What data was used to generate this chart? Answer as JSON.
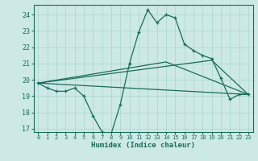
{
  "xlabel": "Humidex (Indice chaleur)",
  "bg_color": "#cce9e5",
  "grid_color": "#aad4ce",
  "line_color": "#1a6b5a",
  "xlim": [
    -0.5,
    23.5
  ],
  "ylim": [
    16.8,
    24.6
  ],
  "yticks": [
    17,
    18,
    19,
    20,
    21,
    22,
    23,
    24
  ],
  "xticks": [
    0,
    1,
    2,
    3,
    4,
    5,
    6,
    7,
    8,
    9,
    10,
    11,
    12,
    13,
    14,
    15,
    16,
    17,
    18,
    19,
    20,
    21,
    22,
    23
  ],
  "line1_x": [
    0,
    1,
    2,
    3,
    4,
    5,
    6,
    7,
    8,
    9,
    10,
    11,
    12,
    13,
    14,
    15,
    16,
    17,
    18,
    19,
    20,
    21,
    22,
    23
  ],
  "line1_y": [
    19.8,
    19.5,
    19.3,
    19.3,
    19.5,
    19.0,
    17.8,
    16.8,
    16.7,
    18.5,
    21.0,
    22.9,
    24.3,
    23.5,
    24.0,
    23.8,
    22.2,
    21.8,
    21.5,
    21.3,
    20.1,
    18.8,
    19.1,
    19.1
  ],
  "line2_x": [
    0,
    23
  ],
  "line2_y": [
    19.8,
    19.1
  ],
  "line3_x": [
    0,
    19,
    23
  ],
  "line3_y": [
    19.8,
    21.2,
    19.1
  ],
  "line4_x": [
    0,
    14,
    23
  ],
  "line4_y": [
    19.8,
    21.1,
    19.1
  ]
}
